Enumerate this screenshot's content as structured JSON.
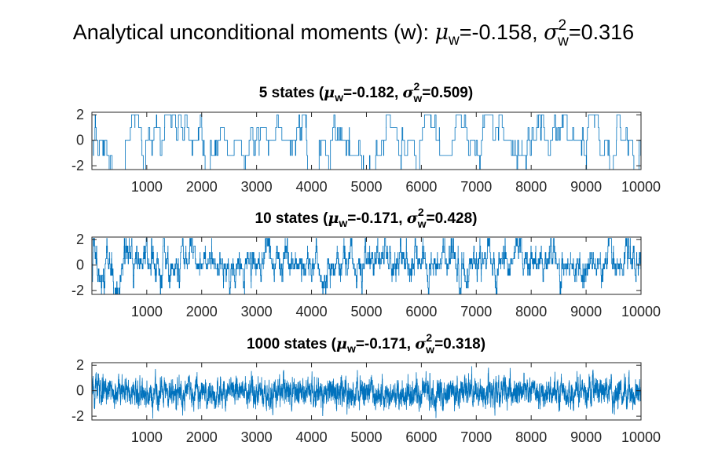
{
  "figure": {
    "title": {
      "prefix": "Analytical unconditional moments (w): ",
      "mu_symbol": "μ",
      "mu_sub": "w",
      "mu_text": "=-0.158, ",
      "sigma_symbol": "σ",
      "sigma_sup": "2",
      "sigma_sub": "w",
      "sigma_text": "=0.316"
    }
  },
  "chart_data": [
    {
      "type": "line",
      "title": {
        "prefix": "5 states (",
        "mu_symbol": "μ",
        "mu_sub": "w",
        "mu_text": "=-0.182, ",
        "sigma_symbol": "σ",
        "sigma_sup": "2",
        "sigma_sub": "w",
        "sigma_text": "=0.509)"
      },
      "num_states": 5,
      "n_points": 10000,
      "mean": -0.182,
      "variance": 0.509,
      "state_levels": [
        -2.5,
        -1.2,
        0,
        1,
        2
      ],
      "xlim": [
        1,
        10000
      ],
      "ylim": [
        -2.3,
        2.2
      ],
      "x_ticks": [
        1000,
        2000,
        3000,
        4000,
        5000,
        6000,
        7000,
        8000,
        9000,
        10000
      ],
      "x_tick_labels": [
        "1000",
        "2000",
        "3000",
        "4000",
        "5000",
        "6000",
        "7000",
        "8000",
        "9000",
        "10000"
      ],
      "y_ticks": [
        -2,
        0,
        2
      ],
      "y_tick_labels": [
        "-2",
        "0",
        "2"
      ],
      "line_color": "#0072BD"
    },
    {
      "type": "line",
      "title": {
        "prefix": "10 states (",
        "mu_symbol": "μ",
        "mu_sub": "w",
        "mu_text": "=-0.171, ",
        "sigma_symbol": "σ",
        "sigma_sup": "2",
        "sigma_sub": "w",
        "sigma_text": "=0.428)"
      },
      "num_states": 10,
      "n_points": 10000,
      "mean": -0.171,
      "variance": 0.428,
      "state_levels": [
        -2.5,
        -1.8,
        -1.3,
        -0.8,
        -0.3,
        0.1,
        0.5,
        1.0,
        1.5,
        2.1
      ],
      "xlim": [
        1,
        10000
      ],
      "ylim": [
        -2.3,
        2.2
      ],
      "x_ticks": [
        1000,
        2000,
        3000,
        4000,
        5000,
        6000,
        7000,
        8000,
        9000,
        10000
      ],
      "x_tick_labels": [
        "1000",
        "2000",
        "3000",
        "4000",
        "5000",
        "6000",
        "7000",
        "8000",
        "9000",
        "10000"
      ],
      "y_ticks": [
        -2,
        0,
        2
      ],
      "y_tick_labels": [
        "-2",
        "0",
        "2"
      ],
      "line_color": "#0072BD"
    },
    {
      "type": "line",
      "title": {
        "prefix": "1000 states (",
        "mu_symbol": "μ",
        "mu_sub": "w",
        "mu_text": "=-0.171, ",
        "sigma_symbol": "σ",
        "sigma_sup": "2",
        "sigma_sub": "w",
        "sigma_text": "=0.318)"
      },
      "num_states": 1000,
      "n_points": 10000,
      "mean": -0.171,
      "variance": 0.318,
      "xlim": [
        1,
        10000
      ],
      "ylim": [
        -2.3,
        2.2
      ],
      "x_ticks": [
        1000,
        2000,
        3000,
        4000,
        5000,
        6000,
        7000,
        8000,
        9000,
        10000
      ],
      "x_tick_labels": [
        "1000",
        "2000",
        "3000",
        "4000",
        "5000",
        "6000",
        "7000",
        "8000",
        "9000",
        "10000"
      ],
      "y_ticks": [
        -2,
        0,
        2
      ],
      "y_tick_labels": [
        "-2",
        "0",
        "2"
      ],
      "line_color": "#0072BD"
    }
  ]
}
